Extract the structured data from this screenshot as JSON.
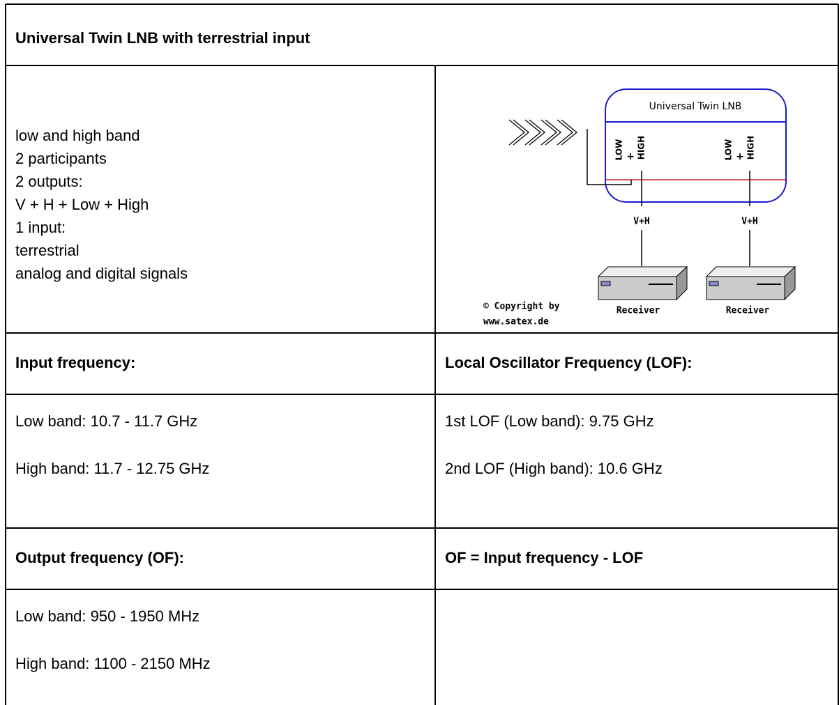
{
  "title": "Universal Twin LNB with terrestrial input",
  "description": [
    "low and high band",
    "2 participants",
    "2 outputs:",
    "V + H + Low + High",
    "1 input:",
    "terrestrial",
    "analog and digital signals"
  ],
  "diagram": {
    "lnb_label": "Universal Twin LNB",
    "ports": [
      {
        "low": "LOW",
        "plus": "+",
        "high": "HIGH"
      },
      {
        "low": "LOW",
        "plus": "+",
        "high": "HIGH"
      }
    ],
    "outputs": [
      "V+H",
      "V+H"
    ],
    "receivers": [
      "Receiver",
      "Receiver"
    ],
    "copyright": [
      "© Copyright by",
      "www.satex.de"
    ]
  },
  "table": {
    "rows": [
      [
        "Input frequency:",
        "Local Oscillator Frequency (LOF):"
      ],
      [
        [
          "Low band: 10.7 - 11.7 GHz",
          "High band: 11.7 - 12.75 GHz"
        ],
        [
          "1st LOF (Low band): 9.75 GHz",
          "2nd LOF (High band): 10.6 GHz"
        ]
      ],
      [
        "Output frequency (OF):",
        "OF = Input frequency - LOF"
      ],
      [
        [
          "Low band: 950 - 1950 MHz",
          "High band: 1100 - 2150 MHz"
        ],
        []
      ]
    ]
  }
}
